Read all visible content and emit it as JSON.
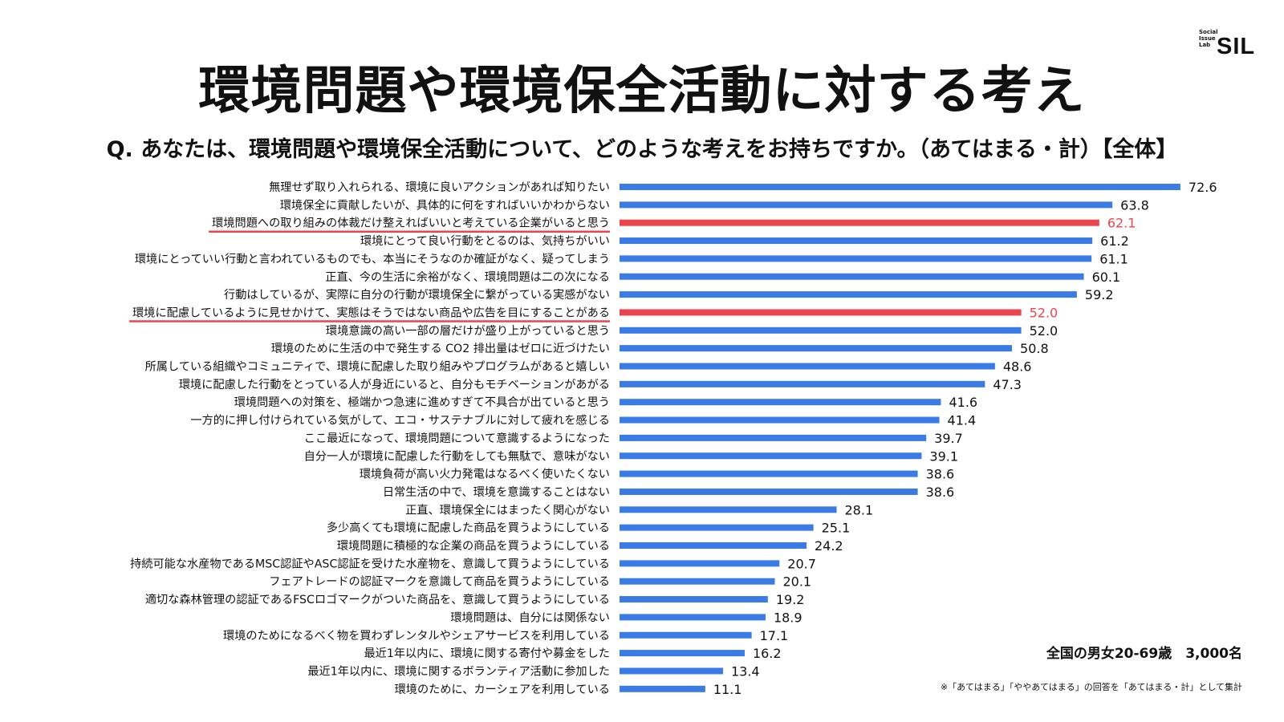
{
  "logo": {
    "small_text": "Social Issue Lab",
    "big_text": "SIL"
  },
  "page_title": "環境問題や環境保全活動に対する考え",
  "sample_note": "全国の男女20-69歳　3,000名",
  "footnote": "※「あてはまる」「ややあてはまる」の回答を「あてはまる・計」として集計",
  "colors": {
    "bar": "#3a7be6",
    "highlight": "#e8454e",
    "text": "#111111"
  },
  "chart_data": {
    "type": "bar",
    "orientation": "horizontal",
    "title": "Q. あなたは、環境問題や環境保全活動について、どのような考えをお持ちですか。（あてはまる・計）【全体】",
    "xlim": [
      0,
      75
    ],
    "categories": [
      "無理せず取り入れられる、環境に良いアクションがあれば知りたい",
      "環境保全に貢献したいが、具体的に何をすればいいかわからない",
      "環境問題への取り組みの体裁だけ整えればいいと考えている企業がいると思う",
      "環境にとって良い行動をとるのは、気持ちがいい",
      "環境にとっていい行動と言われているものでも、本当にそうなのか確証がなく、疑ってしまう",
      "正直、今の生活に余裕がなく、環境問題は二の次になる",
      "行動はしているが、実際に自分の行動が環境保全に繋がっている実感がない",
      "環境に配慮しているように見せかけて、実態はそうではない商品や広告を目にすることがある",
      "環境意識の高い一部の層だけが盛り上がっていると思う",
      "環境のために生活の中で発生する CO2 排出量はゼロに近づけたい",
      "所属している組織やコミュニティで、環境に配慮した取り組みやプログラムがあると嬉しい",
      "環境に配慮した行動をとっている人が身近にいると、自分もモチベーションがあがる",
      "環境問題への対策を、極端かつ急速に進めすぎて不具合が出ていると思う",
      "一方的に押し付けられている気がして、エコ・サステナブルに対して疲れを感じる",
      "ここ最近になって、環境問題について意識するようになった",
      "自分一人が環境に配慮した行動をしても無駄で、意味がない",
      "環境負荷が高い火力発電はなるべく使いたくない",
      "日常生活の中で、環境を意識することはない",
      "正直、環境保全にはまったく関心がない",
      "多少高くても環境に配慮した商品を買うようにしている",
      "環境問題に積極的な企業の商品を買うようにしている",
      "持続可能な水産物であるMSC認証やASC認証を受けた水産物を、意識して買うようにしている",
      "フェアトレードの認証マークを意識して商品を買うようにしている",
      "適切な森林管理の認証であるFSCロゴマークがついた商品を、意識して買うようにしている",
      "環境問題は、自分には関係ない",
      "環境のためになるべく物を買わずレンタルやシェアサービスを利用している",
      "最近1年以内に、環境に関する寄付や募金をした",
      "最近1年以内に、環境に関するボランティア活動に参加した",
      "環境のために、カーシェアを利用している"
    ],
    "values": [
      72.6,
      63.8,
      62.1,
      61.2,
      61.1,
      60.1,
      59.2,
      52.0,
      52.0,
      50.8,
      48.6,
      47.3,
      41.6,
      41.4,
      39.7,
      39.1,
      38.6,
      38.6,
      28.1,
      25.1,
      24.2,
      20.7,
      20.1,
      19.2,
      18.9,
      17.1,
      16.2,
      13.4,
      11.1
    ],
    "value_labels": [
      "72.6",
      "63.8",
      "62.1",
      "61.2",
      "61.1",
      "60.1",
      "59.2",
      "52.0",
      "52.0",
      "50.8",
      "48.6",
      "47.3",
      "41.6",
      "41.4",
      "39.7",
      "39.1",
      "38.6",
      "38.6",
      "28.1",
      "25.1",
      "24.2",
      "20.7",
      "20.1",
      "19.2",
      "18.9",
      "17.1",
      "16.2",
      "13.4",
      "11.1"
    ],
    "highlighted": [
      2,
      7
    ]
  }
}
